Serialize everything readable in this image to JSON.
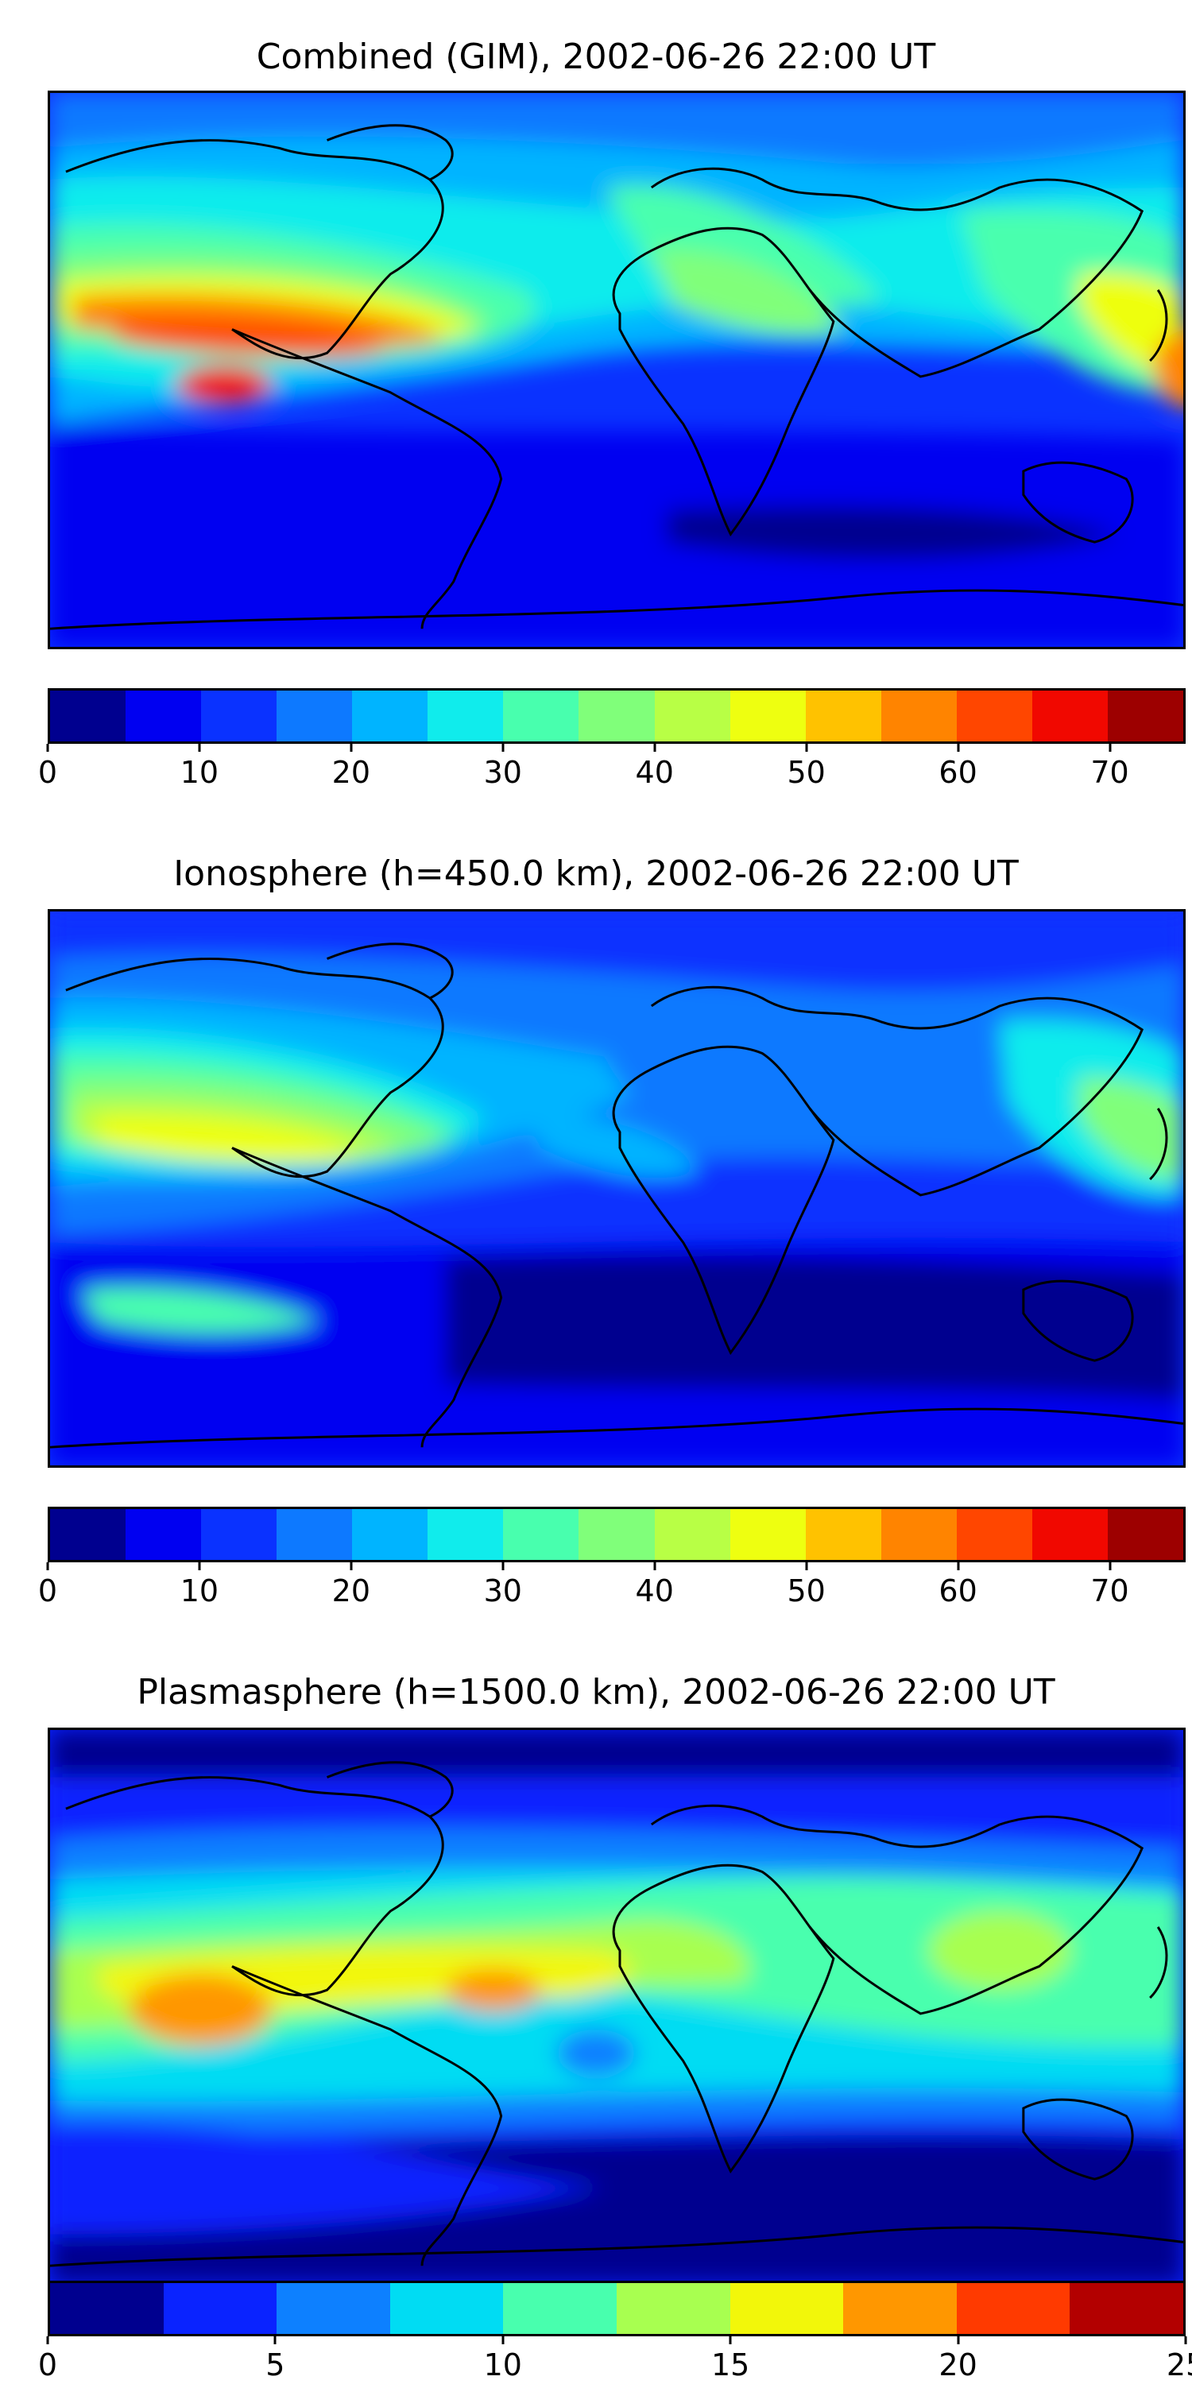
{
  "palette15": [
    "#00008f",
    "#0000f1",
    "#0a32ff",
    "#0d79ff",
    "#00b4ff",
    "#10ecec",
    "#48ffae",
    "#80ff7a",
    "#b8ff45",
    "#eeff10",
    "#ffc200",
    "#ff8400",
    "#ff4600",
    "#f10800",
    "#9d0000"
  ],
  "palette10": [
    "#00008f",
    "#0a23ff",
    "#0d80ff",
    "#00dcf3",
    "#48ffae",
    "#a8ff50",
    "#f2f70a",
    "#ff9700",
    "#ff3a00",
    "#b30000"
  ],
  "panels": [
    {
      "title": "Combined (GIM), 2002-06-26 22:00 UT",
      "colorbar": {
        "min": 0,
        "max": 75,
        "ticks": [
          "0",
          "10",
          "20",
          "30",
          "40",
          "50",
          "60",
          "70"
        ],
        "tick_values": [
          0,
          10,
          20,
          30,
          40,
          50,
          60,
          70
        ],
        "bins": 15
      }
    },
    {
      "title": "Ionosphere  (h=450.0 km), 2002-06-26 22:00 UT",
      "colorbar": {
        "min": 0,
        "max": 75,
        "ticks": [
          "0",
          "10",
          "20",
          "30",
          "40",
          "50",
          "60",
          "70"
        ],
        "tick_values": [
          0,
          10,
          20,
          30,
          40,
          50,
          60,
          70
        ],
        "bins": 15
      }
    },
    {
      "title": "Plasmasphere (h=1500.0 km), 2002-06-26 22:00 UT",
      "colorbar": {
        "min": 0,
        "max": 25,
        "ticks": [
          "0",
          "5",
          "10",
          "15",
          "20",
          "25"
        ],
        "tick_values": [
          0,
          5,
          10,
          15,
          20,
          25
        ],
        "bins": 10
      }
    }
  ]
}
